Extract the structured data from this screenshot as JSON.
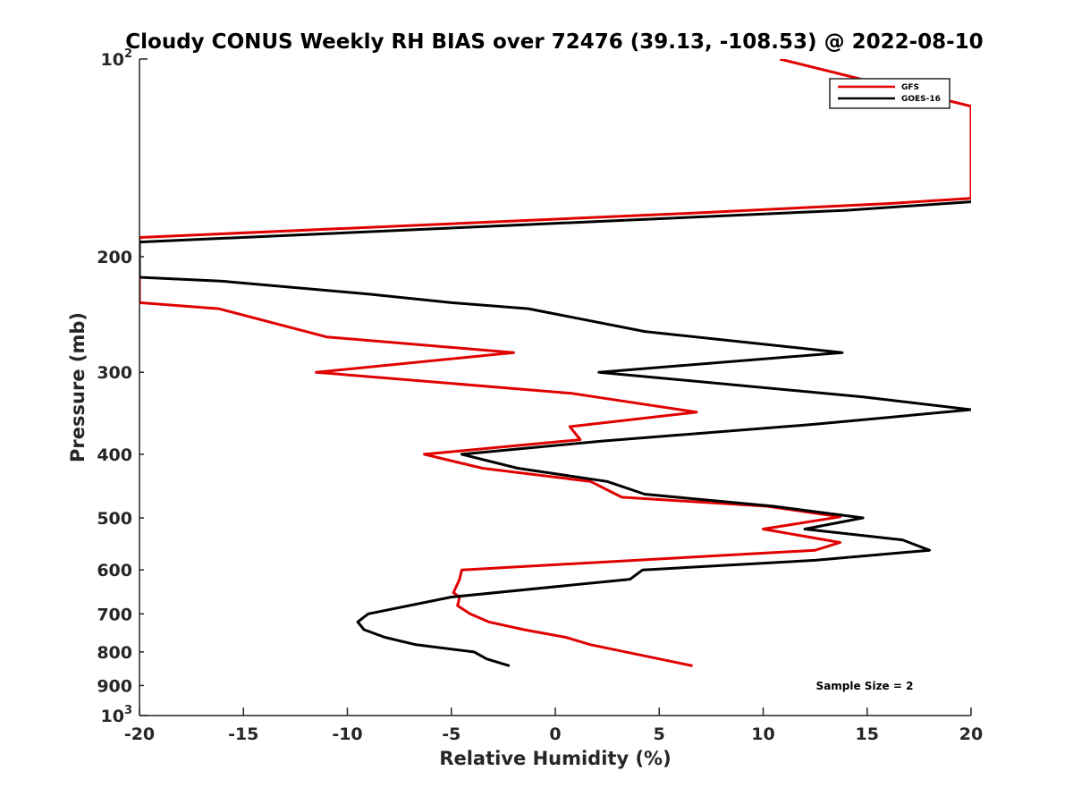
{
  "chart_data": {
    "type": "line",
    "title": "Cloudy CONUS Weekly RH BIAS over 72476 (39.13, -108.53) @ 2022-08-10",
    "xlabel": "Relative Humidity (%)",
    "ylabel": "Pressure (mb)",
    "xlim": [
      -20,
      20
    ],
    "ylim": [
      100,
      1000
    ],
    "y_scale": "log",
    "y_reversed": true,
    "x_ticks": [
      "-20",
      "-15",
      "-10",
      "-5",
      "0",
      "5",
      "10",
      "15",
      "20"
    ],
    "x_tick_values": [
      -20,
      -15,
      -10,
      -5,
      0,
      5,
      10,
      15,
      20
    ],
    "y_ticks": [
      {
        "value": 100,
        "base": "10",
        "exp": "2"
      },
      {
        "value": 200,
        "label": "200"
      },
      {
        "value": 300,
        "label": "300"
      },
      {
        "value": 400,
        "label": "400"
      },
      {
        "value": 500,
        "label": "500"
      },
      {
        "value": 600,
        "label": "600"
      },
      {
        "value": 700,
        "label": "700"
      },
      {
        "value": 800,
        "label": "800"
      },
      {
        "value": 900,
        "label": "900"
      },
      {
        "value": 1000,
        "base": "10",
        "exp": "3"
      }
    ],
    "legend_position": "top-right",
    "annotation": "Sample Size = 2",
    "series": [
      {
        "name": "GFS",
        "color": "#e00000",
        "points": [
          [
            10.8,
            100
          ],
          [
            20,
            118
          ],
          [
            20,
            163
          ],
          [
            16,
            166
          ],
          [
            6,
            172
          ],
          [
            -20,
            187
          ],
          [
            -20,
            235
          ],
          [
            -16.2,
            240
          ],
          [
            -11,
            265
          ],
          [
            -2,
            280
          ],
          [
            -11.5,
            300
          ],
          [
            0.8,
            323
          ],
          [
            6.8,
            345
          ],
          [
            0.7,
            363
          ],
          [
            1.2,
            380
          ],
          [
            -6.3,
            400
          ],
          [
            -3.5,
            420
          ],
          [
            1.7,
            440
          ],
          [
            3.2,
            465
          ],
          [
            10.2,
            480
          ],
          [
            13.7,
            498
          ],
          [
            10,
            520
          ],
          [
            13.7,
            545
          ],
          [
            12.5,
            560
          ],
          [
            -4.5,
            600
          ],
          [
            -4.6,
            620
          ],
          [
            -4.9,
            650
          ],
          [
            -4.6,
            660
          ],
          [
            -4.7,
            680
          ],
          [
            -4.1,
            700
          ],
          [
            -3.2,
            720
          ],
          [
            -1.5,
            740
          ],
          [
            0.5,
            760
          ],
          [
            1.7,
            780
          ],
          [
            5,
            820
          ],
          [
            6.6,
            840
          ]
        ]
      },
      {
        "name": "GOES-16",
        "color": "#000000",
        "points": [
          [
            20,
            165
          ],
          [
            14,
            170
          ],
          [
            -20,
            190
          ],
          [
            -20,
            215
          ],
          [
            -16,
            218
          ],
          [
            -9,
            228
          ],
          [
            -5,
            235
          ],
          [
            -1.3,
            240
          ],
          [
            4.3,
            260
          ],
          [
            13.8,
            280
          ],
          [
            2.1,
            300
          ],
          [
            14.8,
            327
          ],
          [
            20,
            342
          ],
          [
            12.5,
            360
          ],
          [
            2.2,
            382
          ],
          [
            -4.5,
            400
          ],
          [
            -1.8,
            420
          ],
          [
            2.5,
            440
          ],
          [
            4.3,
            460
          ],
          [
            10.5,
            480
          ],
          [
            14.8,
            500
          ],
          [
            12,
            520
          ],
          [
            16.7,
            540
          ],
          [
            18,
            560
          ],
          [
            12.5,
            580
          ],
          [
            4.2,
            600
          ],
          [
            3.6,
            620
          ],
          [
            -5,
            660
          ],
          [
            -9,
            700
          ],
          [
            -9.5,
            720
          ],
          [
            -9.2,
            740
          ],
          [
            -8.2,
            760
          ],
          [
            -6.7,
            780
          ],
          [
            -3.9,
            800
          ],
          [
            -3.3,
            820
          ],
          [
            -2.2,
            840
          ]
        ]
      }
    ]
  }
}
